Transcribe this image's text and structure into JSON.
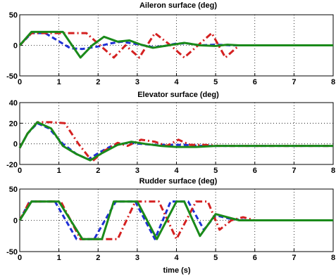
{
  "chart_data": [
    {
      "type": "line",
      "title": "Aileron surface (deg)",
      "xlabel": "",
      "ylabel": "",
      "xlim": [
        0,
        8
      ],
      "ylim": [
        -50,
        50
      ],
      "xticks": [
        0,
        1,
        2,
        3,
        4,
        5,
        6,
        7,
        8
      ],
      "yticks": [
        -50,
        0,
        50
      ],
      "grid": true,
      "series": [
        {
          "color": "#1e2fd6",
          "dash": "dashed",
          "x": [
            0,
            0.3,
            0.65,
            1.3,
            1.6,
            2.0,
            2.3,
            2.6,
            3.0,
            3.4,
            3.7,
            4.0,
            4.3,
            4.6,
            5.0,
            5.4,
            5.8,
            8
          ],
          "y": [
            0,
            20,
            20,
            -5,
            -6,
            -2,
            3,
            6,
            2,
            -3,
            -1,
            3,
            3,
            0,
            1,
            0,
            0,
            0
          ]
        },
        {
          "color": "#d42020",
          "dash": "dashdot",
          "x": [
            0,
            0.3,
            0.7,
            1.35,
            1.7,
            2.05,
            2.4,
            2.7,
            3.05,
            3.45,
            3.85,
            4.2,
            4.55,
            4.9,
            5.25,
            5.6,
            6.0,
            8
          ],
          "y": [
            0,
            20,
            20,
            20,
            20,
            0,
            -20,
            0,
            -20,
            20,
            0,
            -20,
            0,
            20,
            -20,
            0,
            0,
            0
          ]
        },
        {
          "color": "#1a8a1a",
          "dash": "solid",
          "x": [
            0,
            0.3,
            0.8,
            1.1,
            1.55,
            1.85,
            2.15,
            2.5,
            2.8,
            3.1,
            3.4,
            3.8,
            4.2,
            4.6,
            5.0,
            5.3,
            5.6,
            8
          ],
          "y": [
            0,
            22,
            22,
            22,
            -20,
            0,
            14,
            6,
            8,
            1,
            -4,
            0,
            4,
            0,
            -1,
            1,
            0,
            0
          ]
        }
      ]
    },
    {
      "type": "line",
      "title": "Elevator surface (deg)",
      "xlabel": "",
      "ylabel": "",
      "xlim": [
        0,
        8
      ],
      "ylim": [
        -20,
        40
      ],
      "xticks": [
        0,
        1,
        2,
        3,
        4,
        5,
        6,
        7,
        8
      ],
      "yticks": [
        -20,
        0,
        20,
        40
      ],
      "grid": true,
      "series": [
        {
          "color": "#1e2fd6",
          "dash": "dashed",
          "x": [
            0,
            0.2,
            0.45,
            0.75,
            1.1,
            1.45,
            1.75,
            2.05,
            2.4,
            2.8,
            3.1,
            3.4,
            3.8,
            4.2,
            4.6,
            5.0,
            5.5,
            8
          ],
          "y": [
            -4,
            10,
            20,
            15,
            0,
            -10,
            -15,
            -8,
            -1,
            1,
            0,
            -1,
            -1,
            -1,
            -2,
            -2,
            -2,
            -2
          ]
        },
        {
          "color": "#d42020",
          "dash": "dashdot",
          "x": [
            0,
            0.2,
            0.45,
            0.8,
            1.15,
            1.5,
            1.85,
            2.15,
            2.5,
            2.75,
            3.1,
            3.45,
            3.75,
            4.05,
            4.35,
            4.7,
            5.1,
            5.5,
            8
          ],
          "y": [
            -4,
            10,
            21,
            21,
            20,
            0,
            -17,
            -7,
            1,
            -2,
            4,
            2,
            -2,
            4,
            -1,
            -1,
            -2,
            -2,
            -2
          ]
        },
        {
          "color": "#1a8a1a",
          "dash": "solid",
          "x": [
            0,
            0.2,
            0.45,
            0.8,
            1.1,
            1.45,
            1.8,
            2.1,
            2.5,
            2.85,
            3.2,
            3.6,
            4.0,
            4.5,
            5.0,
            5.6,
            8
          ],
          "y": [
            -4,
            10,
            21,
            15,
            -2,
            -10,
            -16,
            -9,
            -1,
            2,
            0,
            -2,
            -3,
            -3,
            -2,
            -2,
            -2
          ]
        }
      ]
    },
    {
      "type": "line",
      "title": "Rudder surface (deg)",
      "xlabel": "time (s)",
      "ylabel": "",
      "xlim": [
        0,
        8
      ],
      "ylim": [
        -50,
        50
      ],
      "xticks": [
        0,
        1,
        2,
        3,
        4,
        5,
        6,
        7,
        8
      ],
      "yticks": [
        -50,
        0,
        50
      ],
      "grid": true,
      "series": [
        {
          "color": "#1e2fd6",
          "dash": "dashed",
          "x": [
            0,
            0.25,
            0.9,
            1.45,
            1.9,
            2.45,
            2.95,
            3.45,
            3.85,
            4.3,
            4.7,
            5.0,
            5.4,
            5.8,
            8
          ],
          "y": [
            0,
            30,
            30,
            -30,
            -30,
            30,
            30,
            -30,
            30,
            30,
            -15,
            8,
            2,
            0,
            0
          ]
        },
        {
          "color": "#d42020",
          "dash": "dashdot",
          "x": [
            0,
            0.25,
            1.05,
            1.55,
            2.0,
            2.5,
            2.95,
            3.55,
            4.0,
            4.5,
            4.8,
            5.1,
            5.4,
            5.7,
            6.0,
            6.5,
            8
          ],
          "y": [
            0,
            30,
            30,
            -30,
            -30,
            -30,
            30,
            30,
            -30,
            30,
            30,
            -15,
            0,
            5,
            0,
            0,
            0
          ]
        },
        {
          "color": "#1a8a1a",
          "dash": "solid",
          "x": [
            0,
            0.3,
            1.0,
            1.6,
            2.1,
            2.4,
            3.0,
            3.5,
            4.0,
            4.2,
            4.6,
            5.0,
            5.3,
            5.6,
            6.0,
            8
          ],
          "y": [
            0,
            30,
            30,
            -30,
            -30,
            30,
            30,
            -30,
            30,
            30,
            -25,
            10,
            5,
            0,
            0,
            0
          ]
        }
      ]
    }
  ]
}
